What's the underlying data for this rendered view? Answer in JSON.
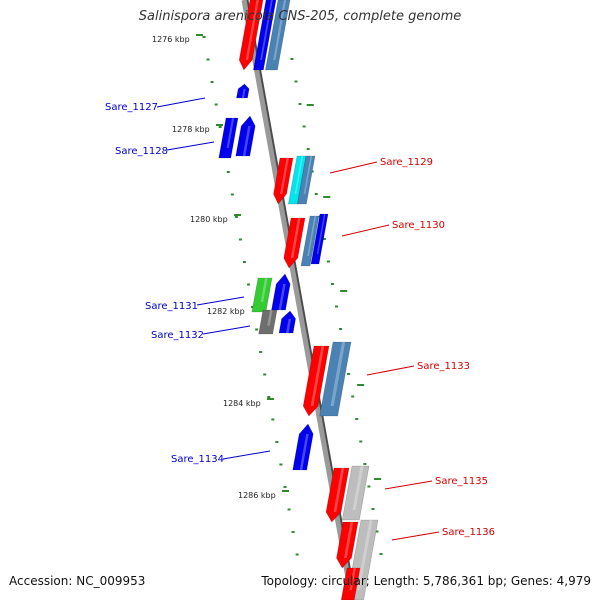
{
  "title": "Salinispora arenicola CNS-205, complete genome",
  "accession": "Accession: NC_009953",
  "summary": "Topology: circular; Length: 5,786,361 bp; Genes: 4,979",
  "colors": {
    "axis": "#808080",
    "tick": "#2e8b2e",
    "forward_label": "#0000cc",
    "reverse_label": "#d40000",
    "gene_red": "#ff0000",
    "gene_blue": "#0000ee",
    "gene_steel": "#4a82b4",
    "gene_cyan": "#00e5ee",
    "gene_green": "#33cc33",
    "gene_gray": "#6e6e6e",
    "gene_lightgray": "#bdbdbd"
  },
  "position_labels": [
    "1276 kbp",
    "1278 kbp",
    "1280 kbp",
    "1282 kbp",
    "1284 kbp",
    "1286 kbp"
  ],
  "gene_labels": [
    {
      "text": "Sare_1127",
      "strand": "forward"
    },
    {
      "text": "Sare_1128",
      "strand": "forward"
    },
    {
      "text": "Sare_1129",
      "strand": "reverse"
    },
    {
      "text": "Sare_1130",
      "strand": "reverse"
    },
    {
      "text": "Sare_1131",
      "strand": "forward"
    },
    {
      "text": "Sare_1132",
      "strand": "forward"
    },
    {
      "text": "Sare_1133",
      "strand": "reverse"
    },
    {
      "text": "Sare_1134",
      "strand": "forward"
    },
    {
      "text": "Sare_1135",
      "strand": "reverse"
    },
    {
      "text": "Sare_1136",
      "strand": "reverse"
    }
  ]
}
